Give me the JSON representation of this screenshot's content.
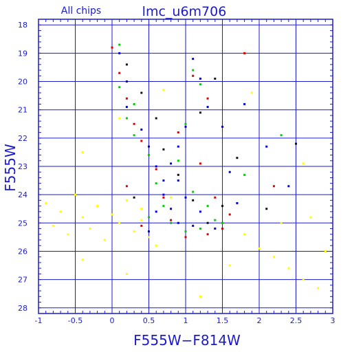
{
  "chart_data": {
    "type": "scatter",
    "title": "lmc_u6m706",
    "subtitle": "All chips",
    "xlabel": "F555W−F814W",
    "ylabel": "F555W",
    "xlim": [
      -1,
      3
    ],
    "ylim": [
      28.2,
      17.8
    ],
    "y_inverted": true,
    "x_ticks": [
      "-1",
      "-0.5",
      "0",
      "0.5",
      "1",
      "1.5",
      "2",
      "2.5",
      "3"
    ],
    "y_ticks": [
      "18",
      "19",
      "20",
      "21",
      "22",
      "23",
      "24",
      "25",
      "26",
      "27",
      "28"
    ],
    "grid": true,
    "series": [
      {
        "color": "#ffff00",
        "points": [
          [
            -0.9,
            24.3
          ],
          [
            -0.8,
            25.1
          ],
          [
            -0.7,
            24.6
          ],
          [
            -0.6,
            25.4
          ],
          [
            -0.5,
            24.0
          ],
          [
            -0.4,
            24.8
          ],
          [
            -0.3,
            25.2
          ],
          [
            -0.2,
            24.4
          ],
          [
            -0.1,
            25.6
          ],
          [
            0.0,
            24.7
          ],
          [
            0.1,
            25.0
          ],
          [
            0.2,
            24.2
          ],
          [
            0.3,
            25.3
          ],
          [
            0.4,
            24.9
          ],
          [
            0.5,
            25.5
          ],
          [
            0.6,
            25.8
          ],
          [
            1.8,
            25.4
          ],
          [
            2.0,
            25.9
          ],
          [
            2.2,
            26.2
          ],
          [
            2.4,
            26.6
          ],
          [
            2.6,
            27.0
          ],
          [
            2.8,
            27.3
          ],
          [
            2.9,
            26.0
          ],
          [
            1.6,
            26.5
          ],
          [
            0.2,
            26.8
          ],
          [
            -0.4,
            26.3
          ],
          [
            0.7,
            20.3
          ],
          [
            1.9,
            20.4
          ],
          [
            2.6,
            22.9
          ],
          [
            -0.4,
            22.5
          ],
          [
            0.1,
            21.3
          ],
          [
            0.4,
            24.5
          ],
          [
            0.8,
            24.1
          ],
          [
            2.3,
            25.0
          ],
          [
            2.7,
            24.8
          ],
          [
            1.2,
            27.6
          ]
        ]
      },
      {
        "color": "#00cc00",
        "points": [
          [
            0.1,
            18.7
          ],
          [
            0.1,
            20.2
          ],
          [
            0.2,
            21.3
          ],
          [
            0.3,
            21.9
          ],
          [
            0.5,
            22.6
          ],
          [
            0.6,
            23.6
          ],
          [
            0.7,
            24.4
          ],
          [
            0.8,
            25.0
          ],
          [
            1.0,
            25.3
          ],
          [
            1.2,
            25.2
          ],
          [
            1.4,
            24.9
          ],
          [
            1.1,
            19.6
          ],
          [
            1.2,
            20.1
          ],
          [
            1.0,
            21.5
          ],
          [
            0.9,
            22.8
          ],
          [
            1.1,
            23.9
          ],
          [
            1.3,
            24.4
          ],
          [
            1.5,
            25.0
          ],
          [
            0.5,
            24.8
          ],
          [
            0.3,
            20.8
          ],
          [
            1.8,
            23.3
          ],
          [
            2.3,
            21.9
          ]
        ]
      },
      {
        "color": "#dd0000",
        "points": [
          [
            0.0,
            18.8
          ],
          [
            0.1,
            19.7
          ],
          [
            0.2,
            20.6
          ],
          [
            0.3,
            21.5
          ],
          [
            0.4,
            22.1
          ],
          [
            0.6,
            23.1
          ],
          [
            0.7,
            24.1
          ],
          [
            0.8,
            24.9
          ],
          [
            1.0,
            25.5
          ],
          [
            1.3,
            25.4
          ],
          [
            1.5,
            25.2
          ],
          [
            1.1,
            19.8
          ],
          [
            1.3,
            20.6
          ],
          [
            0.9,
            21.8
          ],
          [
            1.2,
            22.9
          ],
          [
            1.4,
            24.1
          ],
          [
            1.6,
            24.7
          ],
          [
            0.4,
            25.1
          ],
          [
            0.2,
            23.7
          ],
          [
            2.2,
            23.7
          ],
          [
            1.8,
            19.0
          ]
        ]
      },
      {
        "color": "#0000dd",
        "points": [
          [
            0.1,
            19.0
          ],
          [
            0.2,
            20.0
          ],
          [
            0.2,
            20.9
          ],
          [
            0.4,
            21.7
          ],
          [
            0.5,
            22.3
          ],
          [
            0.6,
            23.0
          ],
          [
            0.7,
            23.5
          ],
          [
            0.7,
            24.0
          ],
          [
            0.8,
            24.5
          ],
          [
            0.9,
            25.0
          ],
          [
            1.1,
            25.1
          ],
          [
            1.2,
            24.6
          ],
          [
            1.0,
            24.1
          ],
          [
            0.9,
            23.5
          ],
          [
            0.8,
            22.9
          ],
          [
            0.9,
            22.3
          ],
          [
            1.0,
            21.6
          ],
          [
            1.1,
            19.2
          ],
          [
            1.2,
            19.9
          ],
          [
            1.3,
            20.9
          ],
          [
            1.5,
            21.6
          ],
          [
            1.6,
            23.2
          ],
          [
            1.7,
            24.3
          ],
          [
            1.4,
            25.2
          ],
          [
            0.6,
            24.6
          ],
          [
            0.5,
            25.3
          ],
          [
            2.4,
            23.7
          ],
          [
            2.1,
            22.3
          ],
          [
            1.8,
            20.8
          ]
        ]
      },
      {
        "color": "#111111",
        "points": [
          [
            0.2,
            19.4
          ],
          [
            0.4,
            20.4
          ],
          [
            0.6,
            21.3
          ],
          [
            0.7,
            22.4
          ],
          [
            0.9,
            23.3
          ],
          [
            1.1,
            24.2
          ],
          [
            1.3,
            25.0
          ],
          [
            1.5,
            24.4
          ],
          [
            1.2,
            21.1
          ],
          [
            1.4,
            19.9
          ],
          [
            1.7,
            22.7
          ],
          [
            2.1,
            24.5
          ],
          [
            0.3,
            24.1
          ],
          [
            2.5,
            22.2
          ]
        ]
      }
    ]
  }
}
